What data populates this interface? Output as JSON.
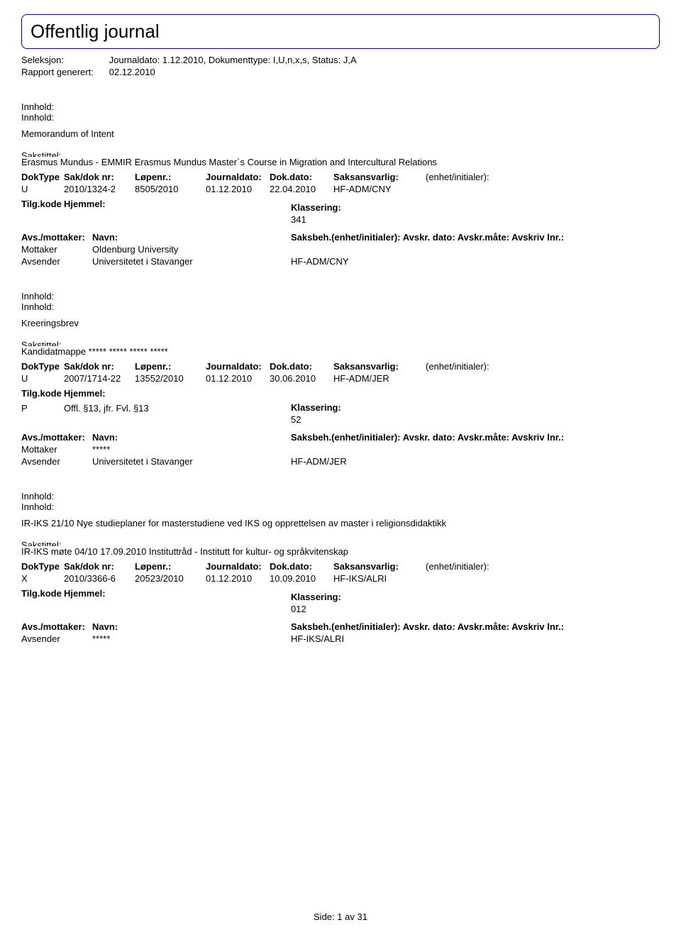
{
  "title": "Offentlig journal",
  "meta": {
    "seleksjon_label": "Seleksjon:",
    "seleksjon_value": "Journaldato: 1.12.2010, Dokumenttype: I,U,n,x,s, Status: J,A",
    "rapport_label": "Rapport generert:",
    "rapport_value": "02.12.2010"
  },
  "labels": {
    "innhold": "Innhold:",
    "sakstittel": "Sakstittel:",
    "doktype": "DokType",
    "sakdok": "Sak/dok nr:",
    "lopenr": "Løpenr.:",
    "journaldato": "Journaldato:",
    "dokdato": "Dok.dato:",
    "saksansvarlig": "Saksansvarlig:",
    "enhet_init": "(enhet/initialer):",
    "tilgkode": "Tilg.kode",
    "hjemmel": "Hjemmel:",
    "klassering": "Klassering:",
    "avs_mottaker": "Avs./mottaker:",
    "navn": "Navn:",
    "saksbeh": "Saksbeh.(enhet/initialer): Avskr. dato: Avskr.måte: Avskriv lnr.:",
    "mottaker": "Mottaker",
    "avsender": "Avsender"
  },
  "entries": [
    {
      "innhold": "Memorandum of Intent",
      "sakstittel": "Erasmus Mundus - EMMIR Erasmus Mundus Master`s Course in Migration and Intercultural Relations",
      "doktype": "U",
      "sakdok": "2010/1324-2",
      "lopenr": "8505/2010",
      "journaldato": "01.12.2010",
      "dokdato": "22.04.2010",
      "saksansvarlig": "HF-ADM/CNY",
      "tilgkode": "",
      "hjemmel": "",
      "klassering": "341",
      "parties": [
        {
          "role": "Mottaker",
          "name": "Oldenburg University",
          "unit": ""
        },
        {
          "role": "Avsender",
          "name": "Universitetet i Stavanger",
          "unit": "HF-ADM/CNY"
        }
      ]
    },
    {
      "innhold": "Kreeringsbrev",
      "sakstittel": "Kandidatmappe ***** ***** ***** *****",
      "doktype": "U",
      "sakdok": "2007/1714-22",
      "lopenr": "13552/2010",
      "journaldato": "01.12.2010",
      "dokdato": "30.06.2010",
      "saksansvarlig": "HF-ADM/JER",
      "tilgkode": "P",
      "hjemmel": "Offl. §13, jfr. Fvl. §13",
      "klassering": "52",
      "parties": [
        {
          "role": "Mottaker",
          "name": "*****",
          "unit": ""
        },
        {
          "role": "Avsender",
          "name": "Universitetet i Stavanger",
          "unit": "HF-ADM/JER"
        }
      ]
    },
    {
      "innhold": "IR-IKS 21/10 Nye studieplaner for masterstudiene ved IKS og opprettelsen av master i religionsdidaktikk",
      "sakstittel": "IR-IKS møte 04/10 17.09.2010 Instituttråd - Institutt for kultur- og språkvitenskap",
      "doktype": "X",
      "sakdok": "2010/3366-6",
      "lopenr": "20523/2010",
      "journaldato": "01.12.2010",
      "dokdato": "10.09.2010",
      "saksansvarlig": "HF-IKS/ALRI",
      "tilgkode": "",
      "hjemmel": "",
      "klassering": "012",
      "parties": [
        {
          "role": "Avsender",
          "name": "*****",
          "unit": "HF-IKS/ALRI"
        }
      ]
    }
  ],
  "footer": {
    "side_label": "Side:",
    "page": "1",
    "av": "av",
    "total": "31"
  }
}
